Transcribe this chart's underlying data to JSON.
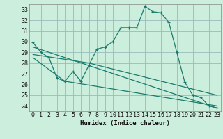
{
  "title": "",
  "xlabel": "Humidex (Indice chaleur)",
  "background_color": "#cceedd",
  "grid_color": "#99bbbb",
  "line_color": "#1a7a6e",
  "xlim": [
    -0.5,
    23.5
  ],
  "ylim": [
    23.5,
    33.5
  ],
  "yticks": [
    24,
    25,
    26,
    27,
    28,
    29,
    30,
    31,
    32,
    33
  ],
  "xticks": [
    0,
    1,
    2,
    3,
    4,
    5,
    6,
    7,
    8,
    9,
    10,
    11,
    12,
    13,
    14,
    15,
    16,
    17,
    18,
    19,
    20,
    21,
    22,
    23
  ],
  "line1_x": [
    0,
    1,
    2,
    3,
    4,
    5,
    6,
    7,
    8,
    9,
    10,
    11,
    12,
    13,
    14,
    15,
    16,
    17,
    18,
    19,
    20,
    21,
    22,
    23
  ],
  "line1_y": [
    29.9,
    29.0,
    28.5,
    26.6,
    26.3,
    27.2,
    26.3,
    27.8,
    29.3,
    29.5,
    30.0,
    31.3,
    31.3,
    31.3,
    33.3,
    32.8,
    32.7,
    31.8,
    29.0,
    26.2,
    25.0,
    24.8,
    24.0,
    23.8
  ],
  "line2_x": [
    0,
    23
  ],
  "line2_y": [
    29.5,
    23.8
  ],
  "line3_x": [
    0,
    7,
    23
  ],
  "line3_y": [
    28.8,
    28.0,
    25.0
  ],
  "line4_x": [
    0,
    4,
    23
  ],
  "line4_y": [
    28.5,
    26.3,
    24.0
  ]
}
